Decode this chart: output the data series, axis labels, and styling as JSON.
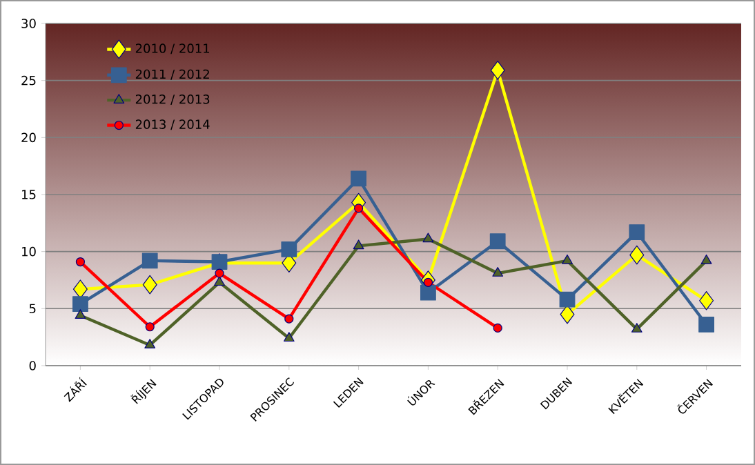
{
  "chart_data": {
    "type": "line",
    "categories": [
      "ZÁŘÍ",
      "ŘÍJEN",
      "LISTOPAD",
      "PROSINEC",
      "LEDEN",
      "ÚNOR",
      "BŘEZEN",
      "DUBEN",
      "KVĚTEN",
      "ČERVEN"
    ],
    "series": [
      {
        "name": "2010 / 2011",
        "color": "#ffff00",
        "marker": "diamond",
        "values": [
          6.7,
          7.1,
          9.0,
          9.0,
          14.3,
          7.5,
          25.9,
          4.5,
          9.7,
          5.7
        ]
      },
      {
        "name": "2011 / 2012",
        "color": "#376092",
        "marker": "square",
        "values": [
          5.4,
          9.2,
          9.1,
          10.2,
          16.4,
          6.4,
          10.9,
          5.8,
          11.7,
          3.6
        ]
      },
      {
        "name": "2012 / 2013",
        "color": "#4f6228",
        "marker": "triangle",
        "values": [
          4.4,
          1.8,
          7.3,
          2.4,
          10.5,
          11.1,
          8.1,
          9.2,
          3.2,
          9.2
        ]
      },
      {
        "name": "2013 / 2014",
        "color": "#ff0000",
        "marker": "circle",
        "values": [
          9.1,
          3.4,
          8.1,
          4.1,
          13.8,
          7.3,
          3.3,
          null,
          null,
          null
        ]
      }
    ],
    "ylim": [
      0,
      30
    ],
    "yticks": [
      0,
      5,
      10,
      15,
      20,
      25,
      30
    ],
    "grid": "y",
    "legend": "top left"
  }
}
